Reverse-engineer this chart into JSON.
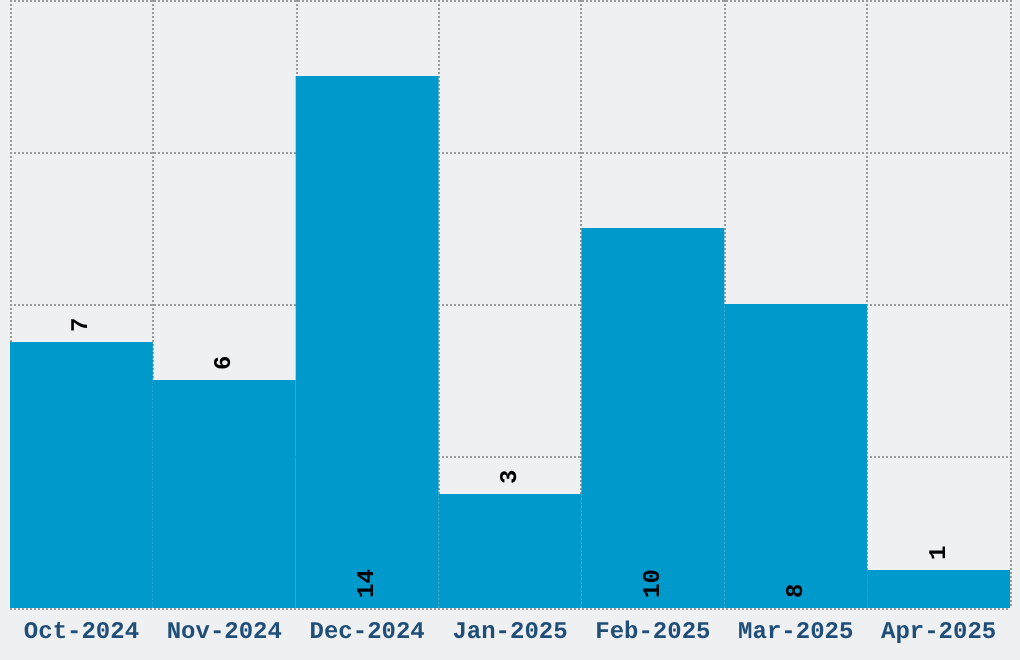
{
  "chart_data": {
    "type": "bar",
    "categories": [
      "Oct-2024",
      "Nov-2024",
      "Dec-2024",
      "Jan-2025",
      "Feb-2025",
      "Mar-2025",
      "Apr-2025"
    ],
    "values": [
      7,
      6,
      14,
      3,
      10,
      8,
      1
    ],
    "color": "#0099cc",
    "ylim": [
      0,
      16
    ],
    "yticks": [
      {
        "value": 0,
        "label": null
      },
      {
        "value": 4,
        "label": null
      },
      {
        "value": 8,
        "label": null
      },
      {
        "value": 12,
        "label": null
      },
      {
        "value": 16,
        "label": null
      }
    ],
    "tick_labels": "x",
    "grid": true,
    "data_labels": true
  }
}
